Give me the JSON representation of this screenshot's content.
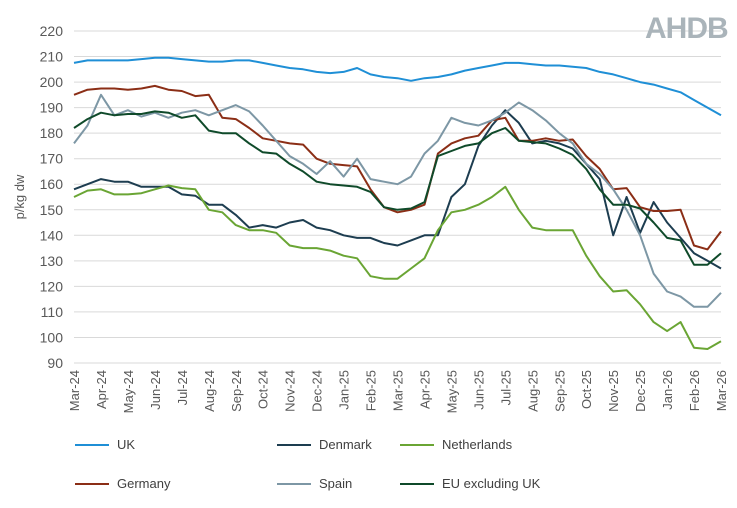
{
  "chart_data": {
    "type": "line",
    "ylabel": "p/kg dw",
    "xlabel": "",
    "ylim": [
      90,
      220
    ],
    "yticks": [
      "90",
      "100",
      "110",
      "120",
      "130",
      "140",
      "150",
      "160",
      "170",
      "180",
      "190",
      "200",
      "210",
      "220"
    ],
    "xticks": [
      "Mar-24",
      "Apr-24",
      "May-24",
      "Jun-24",
      "Jul-24",
      "Aug-24",
      "Sep-24",
      "Oct-24",
      "Nov-24",
      "Dec-24",
      "Jan-25",
      "Feb-25",
      "Mar-25",
      "Apr-25",
      "May-25",
      "Jun-25",
      "Jul-25",
      "Aug-25",
      "Sep-25",
      "Oct-25",
      "Nov-25",
      "Dec-25",
      "Jan-26",
      "Feb-26",
      "Mar-26"
    ],
    "x_note_sampling": "semi-monthly",
    "grid": true,
    "legend_position": "bottom",
    "series": [
      {
        "name": "UK",
        "color": "#1f8fd6",
        "values": [
          207.5,
          208.5,
          208.5,
          208.5,
          208.5,
          209,
          209.5,
          209.5,
          209,
          208.5,
          208,
          208,
          208.5,
          208.5,
          207.5,
          206.5,
          205.5,
          205,
          204,
          203.5,
          204,
          205.5,
          203,
          202,
          201.5,
          200.5,
          201.5,
          202,
          203,
          204.5,
          205.5,
          206.5,
          207.5,
          207.5,
          207,
          206.5,
          206.5,
          206,
          205.5,
          204,
          203,
          201.5,
          200,
          199,
          197.5,
          196,
          193,
          190,
          187
        ]
      },
      {
        "name": "Denmark",
        "color": "#1d3d50",
        "values": [
          158,
          160,
          162,
          161,
          161,
          159,
          159,
          159,
          156,
          155.5,
          152,
          152,
          148,
          143,
          144,
          143,
          145,
          146,
          143,
          142,
          140,
          139,
          139,
          137,
          136,
          138,
          140,
          140,
          155,
          160,
          175,
          183,
          189,
          184,
          176,
          177,
          176,
          174,
          168,
          162,
          140,
          155,
          141,
          153,
          145,
          139,
          133,
          130,
          127
        ]
      },
      {
        "name": "Netherlands",
        "color": "#6aa534",
        "values": [
          155,
          157.5,
          158,
          156,
          156,
          156.5,
          158,
          159.5,
          158.5,
          158,
          150,
          149,
          144,
          142,
          142,
          141,
          136,
          135,
          135,
          134,
          132,
          131,
          124,
          123,
          123,
          127,
          131,
          142,
          149,
          150,
          152,
          155,
          159,
          150,
          143,
          142,
          142,
          142,
          132,
          124,
          118,
          118.5,
          113,
          106,
          102.5,
          106,
          96,
          95.5,
          98.5
        ]
      },
      {
        "name": "Germany",
        "color": "#8b2e16",
        "values": [
          195,
          197,
          197.5,
          197.5,
          197,
          197.5,
          198.5,
          197,
          196.5,
          194.5,
          195,
          186,
          185.5,
          182,
          178,
          177,
          176,
          175.5,
          170,
          168,
          167.5,
          167,
          158,
          151,
          149,
          150,
          152,
          172,
          176,
          178,
          179,
          185,
          186,
          177,
          177,
          178,
          177,
          177.5,
          171,
          166,
          158,
          158.5,
          151,
          149.5,
          149.5,
          150,
          136,
          134.5,
          141.5
        ]
      },
      {
        "name": "Spain",
        "color": "#7d97a5",
        "values": [
          176,
          183,
          195,
          187,
          189,
          186.5,
          188,
          186,
          188,
          189,
          187,
          189,
          191,
          188.5,
          183,
          177,
          171,
          168,
          164,
          169,
          163,
          170,
          162,
          161,
          160,
          163,
          172,
          177,
          186,
          184,
          183,
          185,
          188,
          192,
          189,
          185,
          180,
          176,
          168,
          164,
          158,
          150,
          140,
          125,
          118,
          116,
          112,
          112,
          117.5
        ]
      },
      {
        "name": "EU excluding UK",
        "color": "#0f4a2a",
        "values": [
          182,
          185.5,
          188,
          187,
          187.5,
          187.5,
          188.5,
          188,
          186,
          187,
          181,
          180,
          180,
          176,
          172.5,
          172,
          168,
          165,
          161,
          160,
          159.5,
          159,
          157,
          151,
          150,
          150.5,
          153,
          171,
          173,
          175,
          176,
          180,
          182,
          177,
          176.5,
          176,
          174,
          171.5,
          166,
          158,
          152,
          152,
          150.5,
          145,
          139,
          138,
          128.5,
          128.5,
          133
        ]
      }
    ]
  },
  "logo": {
    "text": "AHDB"
  }
}
